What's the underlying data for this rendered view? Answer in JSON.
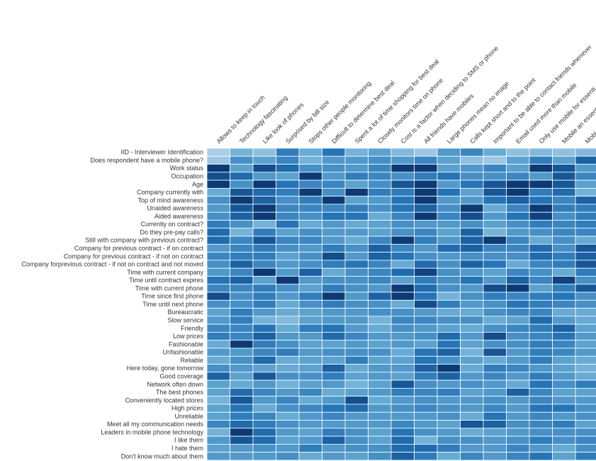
{
  "chart_data": {
    "type": "heatmap",
    "title": "",
    "xlabel": "",
    "ylabel": "",
    "value_scale": [
      0,
      1
    ],
    "colors": {
      "low": "#c6dbef",
      "mid_low": "#6baed6",
      "mid_high": "#2171b5",
      "high": "#08306b",
      "grid": "#ffffff"
    },
    "columns": [
      "Allows to keep in touch",
      "Technology fascinating",
      "Like look of phones",
      "Surprised by bill size",
      "Stops other people monitoring",
      "Difficult to determine best deal",
      "Spent a lot of time shopping for best deal",
      "Closely monitors time on phone",
      "Cost is a factor when deciding to SMS or phone",
      "All friends have mobiles",
      "Large phones mean no image",
      "Calls kept short and to the point",
      "Important to be able to contact friends whenever",
      "Email used more than mobile",
      "Only use mobile for essenti",
      "Mobile an essent",
      "Mobi"
    ],
    "rows": [
      "IID - Interviewer Identification",
      "Does respondent have a mobile phone?",
      "Work status",
      "Occupation",
      "Age",
      "Company currently with",
      "Top of mind awareness",
      "Unaided awareness",
      "Aided awareness",
      "Currently on contract?",
      "Do they pre-pay calls?",
      "Still with company with previous contract?",
      "Company for previous contract - if on contract",
      "Company for previous contract - if not on contract",
      "Company forprevious contract - if not on contract and not moved",
      "Time with current company",
      "Time until contract expires",
      "Time with current phone",
      "Time since first phone",
      "Time until next phone",
      "Bureaucratic",
      "Slow service",
      "Friendly",
      "Low prices",
      "Fashionable",
      "Unfashionable",
      "Reliable",
      "Here today, gone tomorrow",
      "Good coverage",
      "Network often down",
      "The best phones",
      "Conveniently located stores",
      "High prices",
      "Unreliable",
      "Meet all my communication needs",
      "Leaders in mobile phone technology",
      "I like them",
      "I hate them",
      "Don't know much about them"
    ],
    "values": [
      [
        0.1,
        0.3,
        0.2,
        0.6,
        0.35,
        0.65,
        0.3,
        0.4,
        0.25,
        0.15,
        0.45,
        0.55,
        0.35,
        0.2,
        0.25,
        0.2,
        0.25
      ],
      [
        0.15,
        0.5,
        0.4,
        0.55,
        0.3,
        0.45,
        0.45,
        0.5,
        0.45,
        0.55,
        0.4,
        0.2,
        0.15,
        0.4,
        0.6,
        0.4,
        0.75
      ],
      [
        0.95,
        0.4,
        0.85,
        0.7,
        0.5,
        0.5,
        0.45,
        0.55,
        0.95,
        0.95,
        0.4,
        0.45,
        0.55,
        0.4,
        0.95,
        0.8,
        0.45
      ],
      [
        0.85,
        0.7,
        0.45,
        0.4,
        0.95,
        0.45,
        0.6,
        0.55,
        0.5,
        0.6,
        0.65,
        0.5,
        0.5,
        0.55,
        0.45,
        0.8,
        0.55
      ],
      [
        0.95,
        0.5,
        0.95,
        0.65,
        0.55,
        0.55,
        0.4,
        0.5,
        0.8,
        0.95,
        0.45,
        0.65,
        0.8,
        0.95,
        0.95,
        0.8,
        0.4
      ],
      [
        0.35,
        0.8,
        0.7,
        0.6,
        0.95,
        0.5,
        0.95,
        0.6,
        0.6,
        0.95,
        0.65,
        0.4,
        0.8,
        0.95,
        0.6,
        0.7,
        0.3
      ],
      [
        0.5,
        0.95,
        0.75,
        0.5,
        0.6,
        0.95,
        0.4,
        0.45,
        0.65,
        0.95,
        0.45,
        0.45,
        0.65,
        0.75,
        0.65,
        0.55,
        0.75
      ],
      [
        0.45,
        0.8,
        0.95,
        0.55,
        0.55,
        0.55,
        0.6,
        0.5,
        0.65,
        0.75,
        0.5,
        0.95,
        0.35,
        0.55,
        0.95,
        0.6,
        0.6
      ],
      [
        0.5,
        0.75,
        0.95,
        0.55,
        0.5,
        0.65,
        0.65,
        0.35,
        0.55,
        0.95,
        0.55,
        0.85,
        0.45,
        0.65,
        0.9,
        0.5,
        0.6
      ],
      [
        0.6,
        0.5,
        0.3,
        0.65,
        0.35,
        0.45,
        0.35,
        0.4,
        0.5,
        0.45,
        0.45,
        0.5,
        0.4,
        0.5,
        0.6,
        0.55,
        0.6
      ],
      [
        0.7,
        0.3,
        0.6,
        0.4,
        0.5,
        0.45,
        0.45,
        0.4,
        0.5,
        0.55,
        0.4,
        0.75,
        0.3,
        0.45,
        0.5,
        0.55,
        0.55
      ],
      [
        0.7,
        0.55,
        0.8,
        0.55,
        0.55,
        0.45,
        0.35,
        0.55,
        0.95,
        0.6,
        0.45,
        0.75,
        0.95,
        0.55,
        0.35,
        0.5,
        0.35
      ],
      [
        0.45,
        0.55,
        0.6,
        0.5,
        0.45,
        0.6,
        0.5,
        0.75,
        0.55,
        0.45,
        0.7,
        0.75,
        0.55,
        0.55,
        0.7,
        0.5,
        0.8
      ],
      [
        0.55,
        0.6,
        0.6,
        0.4,
        0.5,
        0.85,
        0.45,
        0.75,
        0.65,
        0.5,
        0.45,
        0.5,
        0.5,
        0.5,
        0.7,
        0.6,
        0.75
      ],
      [
        0.5,
        0.75,
        0.55,
        0.45,
        0.5,
        0.6,
        0.65,
        0.55,
        0.35,
        0.7,
        0.5,
        0.75,
        0.65,
        0.35,
        0.55,
        0.6,
        0.8
      ],
      [
        0.45,
        0.55,
        0.95,
        0.45,
        0.75,
        0.35,
        0.5,
        0.55,
        0.7,
        0.9,
        0.5,
        0.45,
        0.4,
        0.55,
        0.5,
        0.35,
        0.6
      ],
      [
        0.65,
        0.75,
        0.4,
        0.95,
        0.45,
        0.5,
        0.5,
        0.55,
        0.4,
        0.6,
        0.5,
        0.65,
        0.45,
        0.75,
        0.55,
        0.9,
        0.5
      ],
      [
        0.55,
        0.55,
        0.6,
        0.5,
        0.4,
        0.6,
        0.5,
        0.45,
        0.95,
        0.7,
        0.5,
        0.45,
        0.85,
        0.95,
        0.4,
        0.6,
        0.8
      ],
      [
        0.85,
        0.5,
        0.6,
        0.45,
        0.6,
        0.95,
        0.45,
        0.75,
        0.95,
        0.65,
        0.3,
        0.5,
        0.6,
        0.55,
        0.6,
        0.65,
        0.5
      ],
      [
        0.5,
        0.5,
        0.6,
        0.35,
        0.5,
        0.6,
        0.5,
        0.5,
        0.35,
        0.85,
        0.6,
        0.45,
        0.5,
        0.65,
        0.6,
        0.55,
        0.5
      ],
      [
        0.4,
        0.6,
        0.45,
        0.35,
        0.4,
        0.45,
        0.45,
        0.5,
        0.5,
        0.45,
        0.35,
        0.35,
        0.5,
        0.55,
        0.55,
        0.35,
        0.35
      ],
      [
        0.45,
        0.6,
        0.3,
        0.25,
        0.4,
        0.45,
        0.45,
        0.3,
        0.55,
        0.55,
        0.5,
        0.5,
        0.35,
        0.4,
        0.7,
        0.45,
        0.35
      ],
      [
        0.55,
        0.55,
        0.65,
        0.35,
        0.6,
        0.65,
        0.45,
        0.35,
        0.5,
        0.45,
        0.4,
        0.35,
        0.5,
        0.55,
        0.6,
        0.75,
        0.4
      ],
      [
        0.6,
        0.55,
        0.75,
        0.45,
        0.45,
        0.7,
        0.55,
        0.45,
        0.45,
        0.5,
        0.7,
        0.45,
        0.85,
        0.5,
        0.55,
        0.65,
        0.45
      ],
      [
        0.35,
        0.95,
        0.6,
        0.5,
        0.4,
        0.4,
        0.45,
        0.4,
        0.45,
        0.4,
        0.65,
        0.4,
        0.5,
        0.5,
        0.6,
        0.55,
        0.4
      ],
      [
        0.45,
        0.45,
        0.55,
        0.6,
        0.45,
        0.5,
        0.5,
        0.5,
        0.35,
        0.65,
        0.75,
        0.3,
        0.8,
        0.45,
        0.6,
        0.55,
        0.45
      ],
      [
        0.35,
        0.5,
        0.7,
        0.35,
        0.4,
        0.4,
        0.6,
        0.4,
        0.4,
        0.65,
        0.5,
        0.4,
        0.35,
        0.45,
        0.6,
        0.4,
        0.35
      ],
      [
        0.5,
        0.45,
        0.4,
        0.35,
        0.4,
        0.75,
        0.35,
        0.45,
        0.45,
        0.75,
        0.95,
        0.35,
        0.6,
        0.55,
        0.45,
        0.4,
        0.3
      ],
      [
        0.75,
        0.4,
        0.8,
        0.5,
        0.5,
        0.6,
        0.4,
        0.45,
        0.4,
        0.6,
        0.75,
        0.45,
        0.55,
        0.45,
        0.6,
        0.45,
        0.35
      ],
      [
        0.4,
        0.35,
        0.45,
        0.3,
        0.4,
        0.45,
        0.3,
        0.4,
        0.8,
        0.5,
        0.45,
        0.5,
        0.45,
        0.35,
        0.65,
        0.5,
        0.6
      ],
      [
        0.4,
        0.7,
        0.55,
        0.45,
        0.55,
        0.35,
        0.4,
        0.45,
        0.6,
        0.55,
        0.6,
        0.4,
        0.45,
        0.75,
        0.55,
        0.4,
        0.4
      ],
      [
        0.3,
        0.8,
        0.45,
        0.55,
        0.35,
        0.45,
        0.85,
        0.35,
        0.45,
        0.5,
        0.45,
        0.45,
        0.5,
        0.45,
        0.55,
        0.45,
        0.45
      ],
      [
        0.4,
        0.65,
        0.35,
        0.5,
        0.55,
        0.65,
        0.7,
        0.45,
        0.5,
        0.55,
        0.5,
        0.45,
        0.55,
        0.45,
        0.65,
        0.65,
        0.5
      ],
      [
        0.4,
        0.6,
        0.55,
        0.35,
        0.45,
        0.55,
        0.45,
        0.45,
        0.45,
        0.45,
        0.5,
        0.35,
        0.65,
        0.45,
        0.55,
        0.45,
        0.5
      ],
      [
        0.55,
        0.7,
        0.6,
        0.5,
        0.45,
        0.45,
        0.45,
        0.45,
        0.55,
        0.45,
        0.4,
        0.8,
        0.75,
        0.5,
        0.55,
        0.6,
        0.4
      ],
      [
        0.3,
        0.95,
        0.7,
        0.45,
        0.4,
        0.6,
        0.5,
        0.4,
        0.65,
        0.5,
        0.45,
        0.35,
        0.4,
        0.45,
        0.5,
        0.5,
        0.5
      ],
      [
        0.45,
        0.8,
        0.7,
        0.4,
        0.45,
        0.75,
        0.5,
        0.4,
        0.7,
        0.3,
        0.5,
        0.5,
        0.45,
        0.5,
        0.6,
        0.5,
        0.55
      ],
      [
        0.4,
        0.45,
        0.5,
        0.45,
        0.6,
        0.45,
        0.5,
        0.5,
        0.7,
        0.7,
        0.6,
        0.45,
        0.45,
        0.55,
        0.45,
        0.35,
        0.5
      ],
      [
        0.45,
        0.45,
        0.45,
        0.5,
        0.35,
        0.45,
        0.4,
        0.5,
        0.75,
        0.6,
        0.35,
        0.55,
        0.45,
        0.55,
        0.65,
        0.4,
        0.6
      ]
    ]
  }
}
